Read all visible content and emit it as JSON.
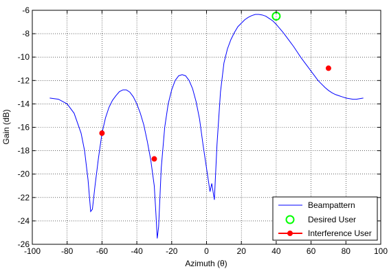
{
  "chart_data": {
    "type": "line",
    "xlabel": "Azimuth (θ)",
    "ylabel": "Gain (dB)",
    "xlim": [
      -100,
      100
    ],
    "ylim": [
      -26,
      -6
    ],
    "xticks": [
      -100,
      -80,
      -60,
      -40,
      -20,
      0,
      20,
      40,
      60,
      80,
      100
    ],
    "yticks": [
      -26,
      -24,
      -22,
      -20,
      -18,
      -16,
      -14,
      -12,
      -10,
      -8,
      -6
    ],
    "x_tick_labels": [
      "-100",
      "-80",
      "-60",
      "-40",
      "-20",
      "0",
      "20",
      "40",
      "60",
      "80",
      "100"
    ],
    "y_tick_labels": [
      "-26",
      "-24",
      "-22",
      "-20",
      "-18",
      "-16",
      "-14",
      "-12",
      "-10",
      "-8",
      "-6"
    ],
    "grid": true,
    "legend_position": "bottom-right",
    "series": [
      {
        "name": "Beampattern",
        "color": "#0000ff",
        "x": [
          -90,
          -85,
          -80,
          -76,
          -72,
          -70,
          -68,
          -66.5,
          -65.5,
          -64,
          -62,
          -60,
          -58,
          -56,
          -54,
          -52,
          -50,
          -48,
          -46,
          -44,
          -42,
          -40,
          -38,
          -36,
          -34,
          -32,
          -30,
          -29,
          -28.3,
          -27.5,
          -26,
          -24,
          -22,
          -20,
          -18,
          -16,
          -14,
          -12,
          -10,
          -8,
          -6,
          -4,
          -2,
          0,
          2,
          3,
          4.5,
          6,
          8,
          10,
          12,
          14,
          16,
          18,
          20,
          22,
          24,
          26,
          28,
          30,
          32,
          34,
          36,
          38,
          40,
          42,
          44,
          46,
          48,
          50,
          52,
          54,
          56,
          58,
          60,
          62,
          64,
          66,
          68,
          70,
          72,
          74,
          76,
          78,
          80,
          82,
          84,
          86,
          88,
          90
        ],
        "values": [
          -13.5,
          -13.6,
          -14.0,
          -14.8,
          -16.5,
          -18.0,
          -20.5,
          -23.2,
          -23.0,
          -21.0,
          -18.6,
          -16.5,
          -15.2,
          -14.3,
          -13.7,
          -13.3,
          -12.95,
          -12.8,
          -12.8,
          -13.0,
          -13.4,
          -14.0,
          -14.8,
          -15.8,
          -17.2,
          -18.8,
          -21.0,
          -23.5,
          -25.5,
          -24.5,
          -19.5,
          -16.0,
          -14.0,
          -12.8,
          -12.0,
          -11.6,
          -11.5,
          -11.6,
          -12.0,
          -12.7,
          -13.8,
          -15.3,
          -17.5,
          -19.5,
          -21.5,
          -20.8,
          -22.2,
          -17.5,
          -13.0,
          -10.5,
          -9.3,
          -8.5,
          -7.9,
          -7.4,
          -7.1,
          -6.8,
          -6.6,
          -6.45,
          -6.35,
          -6.35,
          -6.4,
          -6.5,
          -6.7,
          -6.9,
          -7.2,
          -7.55,
          -7.9,
          -8.3,
          -8.7,
          -9.1,
          -9.55,
          -10.0,
          -10.4,
          -10.8,
          -11.2,
          -11.6,
          -12.0,
          -12.3,
          -12.6,
          -12.85,
          -13.05,
          -13.2,
          -13.3,
          -13.4,
          -13.5,
          -13.55,
          -13.6,
          -13.6,
          -13.55,
          -13.5
        ]
      },
      {
        "name": "Desired User",
        "color": "#00ff00",
        "marker": "circle-open",
        "x": [
          40
        ],
        "values": [
          -6.5
        ]
      },
      {
        "name": "Interference User",
        "color": "#ff0000",
        "marker": "circle-filled",
        "x": [
          -60,
          -30,
          70
        ],
        "values": [
          -16.5,
          -18.7,
          -10.95
        ]
      }
    ]
  }
}
